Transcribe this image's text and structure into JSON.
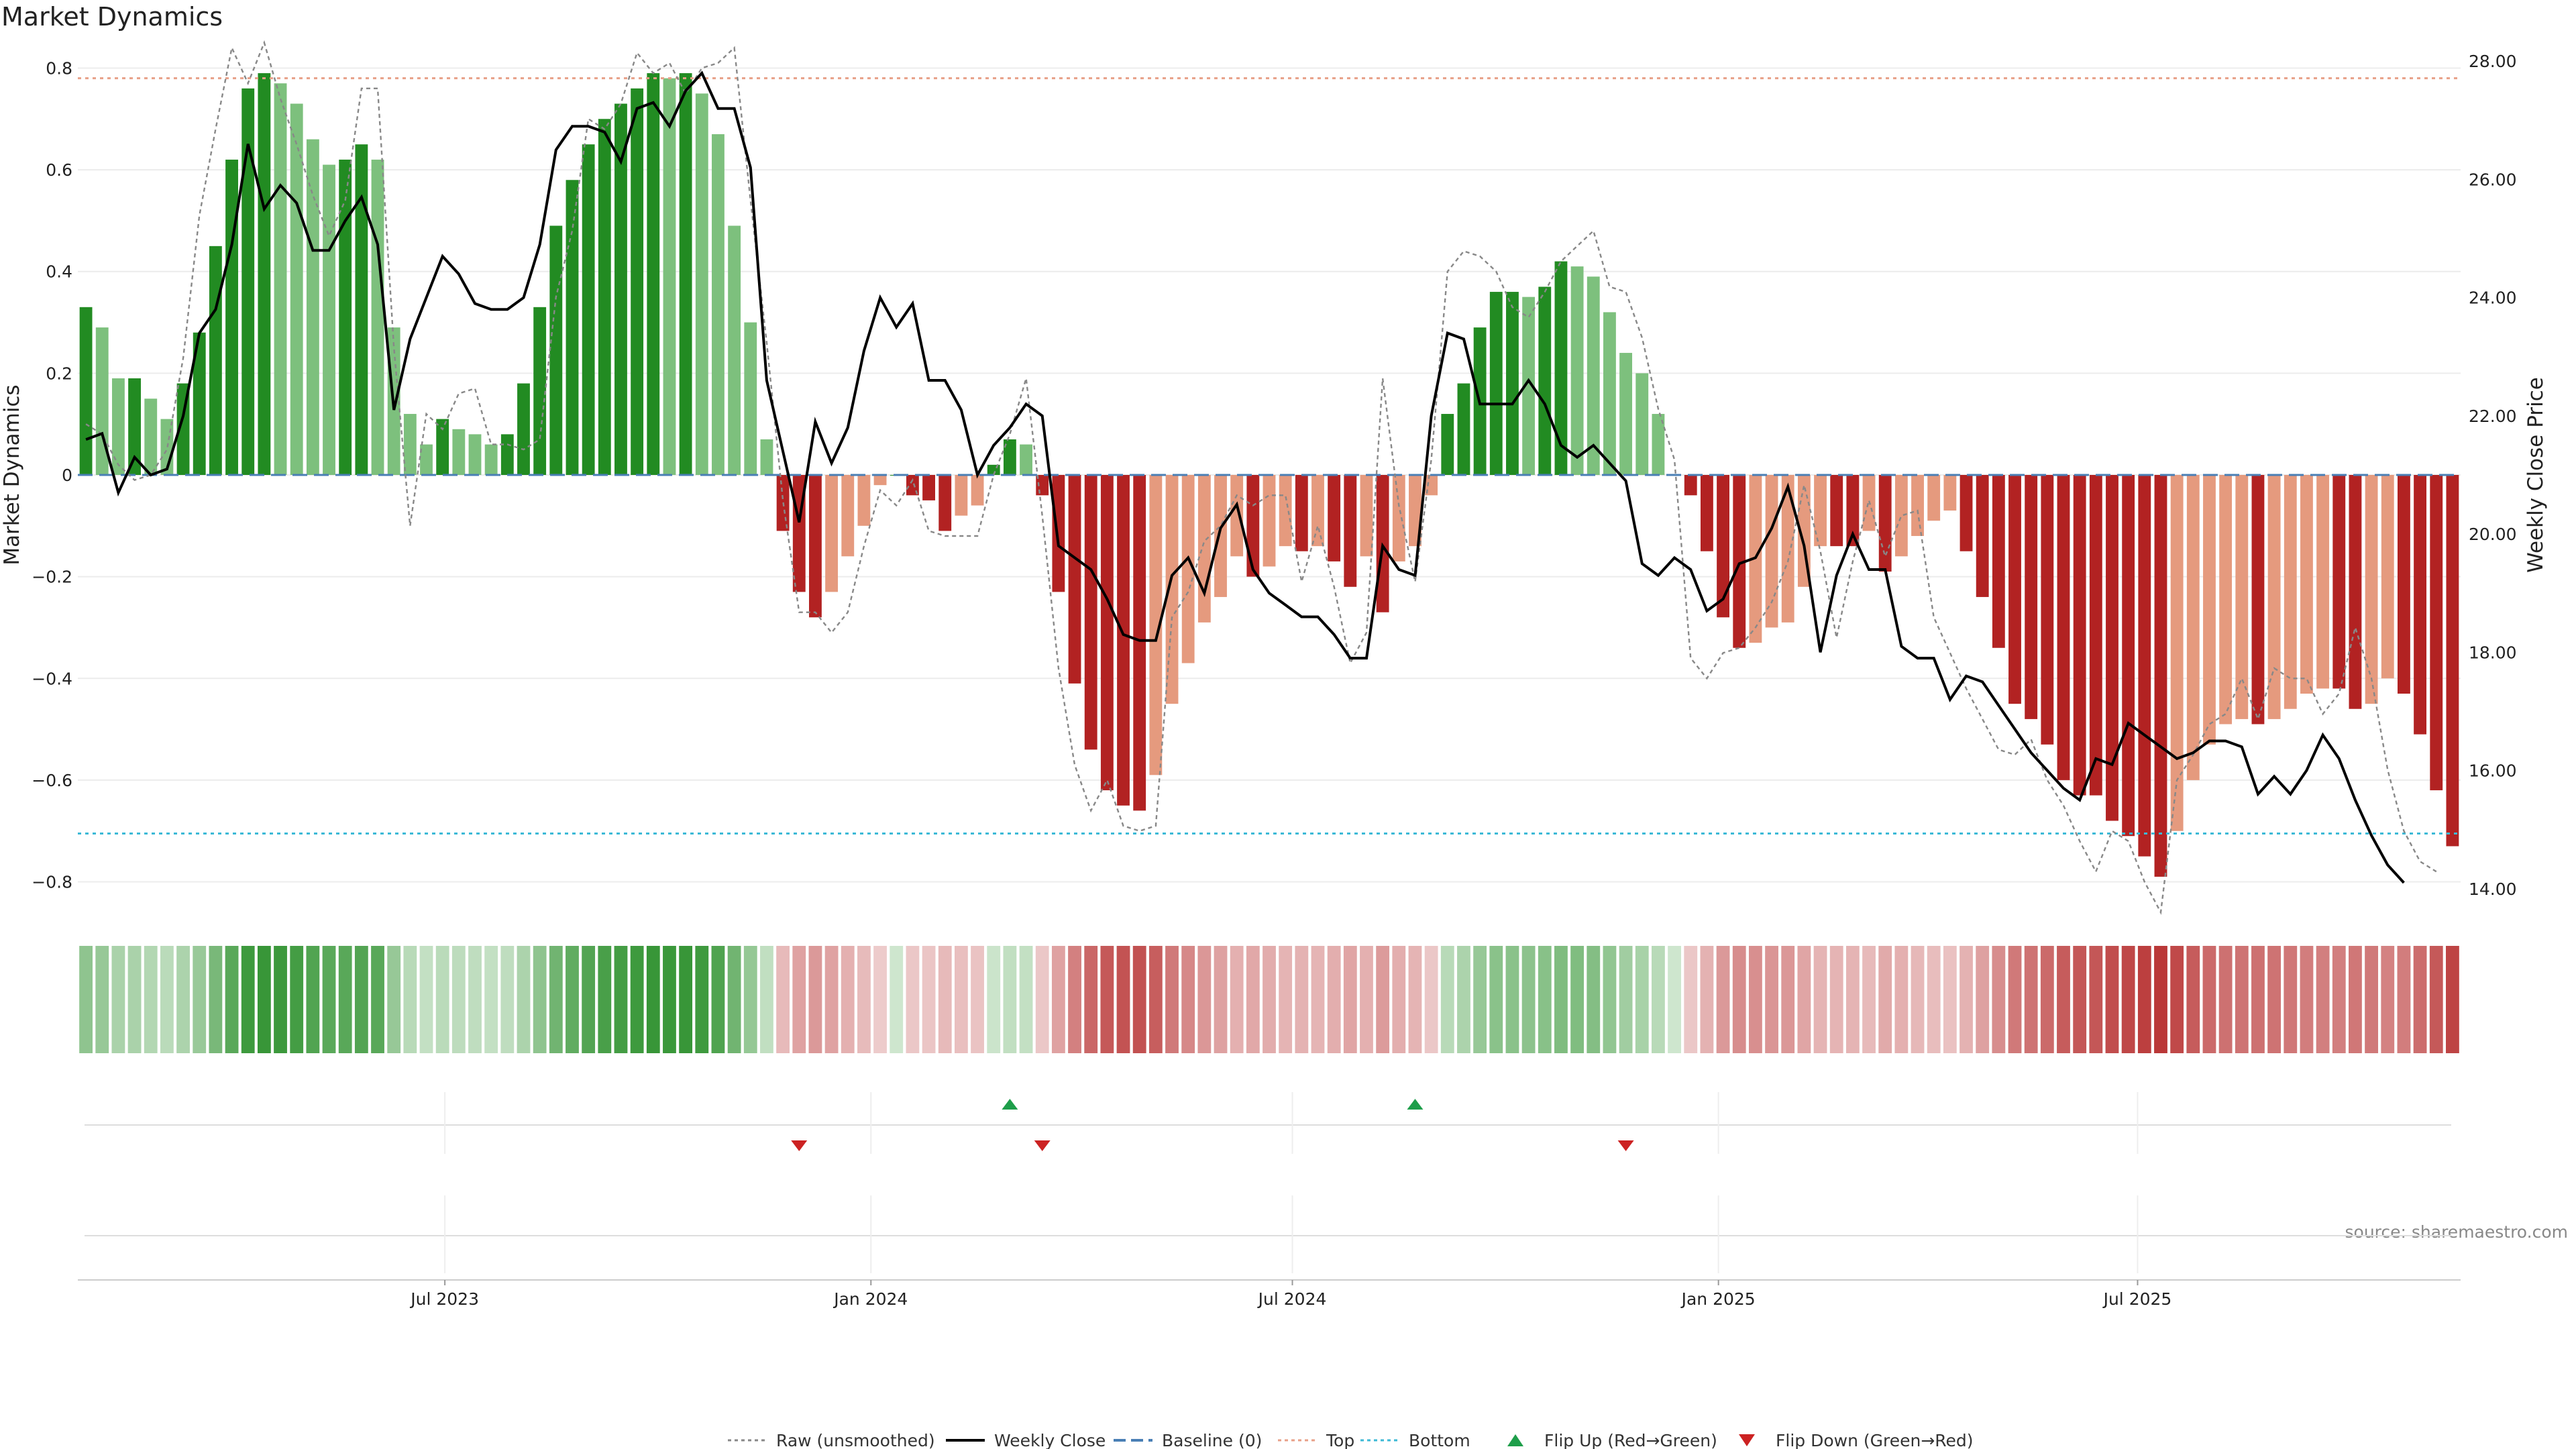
{
  "chart_data": {
    "type": "bar",
    "title": "Market Dynamics",
    "ylabel_left": "Market Dynamics",
    "ylabel_right": "Weekly Close Price",
    "source": "source: sharemaestro.com",
    "left_axis": {
      "ylim": [
        -0.86,
        0.86
      ],
      "ticks": [
        0.8,
        0.6,
        0.4,
        0.2,
        0,
        -0.2,
        -0.4,
        -0.6,
        -0.8
      ],
      "tick_labels": [
        "0.8",
        "0.6",
        "0.4",
        "0.2",
        "0",
        "−0.2",
        "−0.4",
        "−0.6",
        "−0.8"
      ]
    },
    "right_axis": {
      "ylim": [
        13.6,
        28.4
      ],
      "ticks": [
        28,
        26,
        24,
        22,
        20,
        18,
        16,
        14
      ],
      "tick_labels": [
        "28.00",
        "26.00",
        "24.00",
        "22.00",
        "20.00",
        "18.00",
        "16.00",
        "14.00"
      ]
    },
    "x_axis": {
      "start_date": "2023-01-27",
      "interval_days": 7,
      "ticks": [
        "2023-07-01",
        "2024-01-01",
        "2024-07-01",
        "2025-01-01",
        "2025-07-01"
      ],
      "tick_labels": [
        "Jul 2023",
        "Jan 2024",
        "Jul 2024",
        "Jan 2025",
        "Jul 2025"
      ]
    },
    "reference_lines": {
      "baseline": 0,
      "top": 0.78,
      "bottom": -0.705
    },
    "momentum": [
      0.33,
      0.29,
      0.19,
      0.19,
      0.15,
      0.11,
      0.18,
      0.28,
      0.45,
      0.62,
      0.76,
      0.79,
      0.77,
      0.73,
      0.66,
      0.61,
      0.62,
      0.65,
      0.62,
      0.29,
      0.12,
      0.06,
      0.11,
      0.09,
      0.08,
      0.06,
      0.08,
      0.18,
      0.33,
      0.49,
      0.58,
      0.65,
      0.7,
      0.73,
      0.76,
      0.79,
      0.78,
      0.79,
      0.75,
      0.67,
      0.49,
      0.3,
      0.07,
      -0.11,
      -0.23,
      -0.28,
      -0.23,
      -0.16,
      -0.1,
      -0.02,
      0,
      -0.04,
      -0.05,
      -0.11,
      -0.08,
      -0.06,
      0.02,
      0.07,
      0.06,
      -0.04,
      -0.23,
      -0.41,
      -0.54,
      -0.62,
      -0.65,
      -0.66,
      -0.59,
      -0.45,
      -0.37,
      -0.29,
      -0.24,
      -0.16,
      -0.2,
      -0.18,
      -0.14,
      -0.15,
      -0.14,
      -0.17,
      -0.22,
      -0.16,
      -0.27,
      -0.17,
      -0.14,
      -0.04,
      0.12,
      0.18,
      0.29,
      0.36,
      0.36,
      0.35,
      0.37,
      0.42,
      0.41,
      0.39,
      0.32,
      0.24,
      0.2,
      0.12,
      0,
      -0.04,
      -0.15,
      -0.28,
      -0.34,
      -0.33,
      -0.3,
      -0.29,
      -0.22,
      -0.14,
      -0.14,
      -0.14,
      -0.11,
      -0.19,
      -0.16,
      -0.12,
      -0.09,
      -0.07,
      -0.15,
      -0.24,
      -0.34,
      -0.45,
      -0.48,
      -0.53,
      -0.6,
      -0.63,
      -0.63,
      -0.68,
      -0.71,
      -0.75,
      -0.79,
      -0.7,
      -0.6,
      -0.53,
      -0.49,
      -0.48,
      -0.49,
      -0.48,
      -0.46,
      -0.43,
      -0.42,
      -0.42,
      -0.46,
      -0.45,
      -0.4,
      -0.43,
      -0.51,
      -0.62,
      -0.73
    ],
    "weekly_close": [
      21.6,
      21.7,
      20.7,
      21.3,
      21.0,
      21.1,
      22.0,
      23.4,
      23.8,
      24.9,
      26.6,
      25.5,
      25.9,
      25.6,
      24.8,
      24.8,
      25.3,
      25.7,
      24.9,
      22.1,
      23.3,
      24.0,
      24.7,
      24.4,
      23.9,
      23.8,
      23.8,
      24.0,
      24.9,
      26.5,
      26.9,
      26.9,
      26.8,
      26.3,
      27.2,
      27.3,
      26.9,
      27.5,
      27.8,
      27.2,
      27.2,
      26.2,
      22.6,
      21.4,
      20.2,
      21.9,
      21.2,
      21.8,
      23.1,
      24.0,
      23.5,
      23.9,
      22.6,
      22.6,
      22.1,
      21.0,
      21.5,
      21.8,
      22.2,
      22.0,
      19.8,
      19.6,
      19.4,
      18.9,
      18.3,
      18.2,
      18.2,
      19.3,
      19.6,
      19.0,
      20.1,
      20.5,
      19.4,
      19.0,
      18.8,
      18.6,
      18.6,
      18.3,
      17.9,
      17.9,
      19.8,
      19.4,
      19.3,
      22.0,
      23.4,
      23.3,
      22.2,
      22.2,
      22.2,
      22.6,
      22.2,
      21.5,
      21.3,
      21.5,
      21.2,
      20.9,
      19.5,
      19.3,
      19.6,
      19.4,
      18.7,
      18.9,
      19.5,
      19.6,
      20.1,
      20.8,
      19.8,
      18.0,
      19.3,
      20.0,
      19.4,
      19.4,
      18.1,
      17.9,
      17.9,
      17.2,
      17.6,
      17.5,
      17.1,
      16.7,
      16.3,
      16.0,
      15.7,
      15.5,
      16.2,
      16.1,
      16.8,
      16.6,
      16.4,
      16.2,
      16.3,
      16.5,
      16.5,
      16.4,
      15.6,
      15.9,
      15.6,
      16.0,
      16.6,
      16.2,
      15.5,
      14.9,
      14.4,
      14.1
    ],
    "raw_momentum": [
      0.1,
      0.08,
      0.02,
      -0.01,
      0.0,
      0.05,
      0.23,
      0.51,
      0.68,
      0.84,
      0.77,
      0.85,
      0.74,
      0.65,
      0.55,
      0.47,
      0.54,
      0.76,
      0.76,
      0.25,
      -0.1,
      0.12,
      0.09,
      0.16,
      0.17,
      0.06,
      0.06,
      0.05,
      0.07,
      0.35,
      0.48,
      0.7,
      0.68,
      0.73,
      0.83,
      0.79,
      0.81,
      0.75,
      0.8,
      0.81,
      0.84,
      0.54,
      0.26,
      -0.05,
      -0.27,
      -0.27,
      -0.31,
      -0.27,
      -0.14,
      -0.03,
      -0.06,
      -0.01,
      -0.11,
      -0.12,
      -0.12,
      -0.12,
      0.0,
      0.08,
      0.19,
      -0.08,
      -0.38,
      -0.57,
      -0.66,
      -0.6,
      -0.69,
      -0.7,
      -0.69,
      -0.28,
      -0.23,
      -0.13,
      -0.1,
      -0.04,
      -0.06,
      -0.04,
      -0.04,
      -0.21,
      -0.1,
      -0.22,
      -0.37,
      -0.31,
      0.19,
      -0.06,
      -0.21,
      0.03,
      0.4,
      0.44,
      0.43,
      0.4,
      0.33,
      0.31,
      0.36,
      0.42,
      0.45,
      0.48,
      0.37,
      0.36,
      0.27,
      0.13,
      0.03,
      -0.36,
      -0.4,
      -0.35,
      -0.34,
      -0.3,
      -0.25,
      -0.17,
      -0.02,
      -0.15,
      -0.32,
      -0.17,
      -0.05,
      -0.16,
      -0.08,
      -0.07,
      -0.28,
      -0.35,
      -0.42,
      -0.48,
      -0.54,
      -0.55,
      -0.52,
      -0.6,
      -0.65,
      -0.72,
      -0.78,
      -0.7,
      -0.72,
      -0.8,
      -0.86,
      -0.6,
      -0.55,
      -0.49,
      -0.47,
      -0.4,
      -0.48,
      -0.38,
      -0.4,
      -0.4,
      -0.47,
      -0.43,
      -0.3,
      -0.4,
      -0.58,
      -0.7,
      -0.76,
      -0.78
    ],
    "flips": {
      "up_weeks": [
        57,
        82
      ],
      "down_weeks": [
        44,
        59,
        95
      ]
    },
    "legend": [
      {
        "label": "Raw (unsmoothed)",
        "style": "dotted-gray"
      },
      {
        "label": "Weekly Close",
        "style": "solid-black"
      },
      {
        "label": "Baseline (0)",
        "style": "dashed-blue"
      },
      {
        "label": "Top",
        "style": "dotted-salmon"
      },
      {
        "label": "Bottom",
        "style": "dotted-cyan"
      },
      {
        "label": "Flip Up (Red→Green)",
        "style": "triangle-up-green"
      },
      {
        "label": "Flip Down (Green→Red)",
        "style": "triangle-down-red"
      }
    ],
    "legend_placement": "bottom-center",
    "colors": {
      "strong_up": "#228B22",
      "weak_up": "#7DC07D",
      "strong_down": "#B22222",
      "weak_down": "#E59A7E",
      "close_line": "#000000",
      "raw_line": "#888888",
      "baseline": "#4A7FB5",
      "top_line": "#E8A088",
      "bottom_line": "#3CB9D6",
      "flip_up": "#1E9E4A",
      "flip_down": "#CC2222"
    }
  }
}
